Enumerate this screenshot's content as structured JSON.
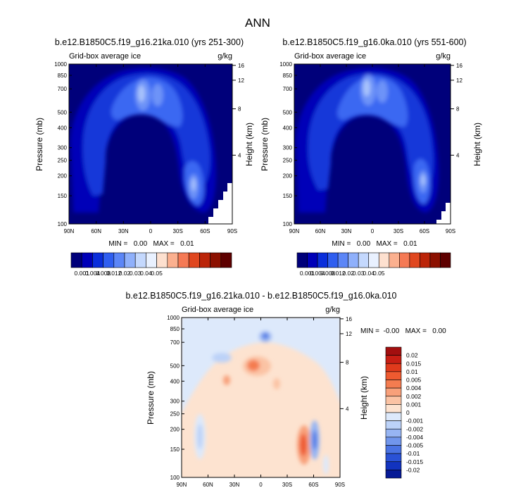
{
  "title": "ANN",
  "chart_data": [
    {
      "type": "heatmap",
      "title": "b.e12.B1850C5.f19_g16.21ka.010 (yrs 251-300)",
      "left_subtitle": "Grid-box average ice",
      "right_subtitle": "g/kg",
      "xlabel": "",
      "ylabel": "Pressure (mb)",
      "ylabel_right": "Height (km)",
      "x_ticks": [
        "90N",
        "60N",
        "30N",
        "0",
        "30S",
        "60S",
        "90S"
      ],
      "y_ticks": [
        "100",
        "150",
        "200",
        "250",
        "300",
        "400",
        "500",
        "700",
        "850",
        "1000"
      ],
      "y_ticks_right": [
        "16",
        "12",
        "8",
        "4"
      ],
      "stats": "MIN =   0.00   MAX =   0.01",
      "colorbar": {
        "labels": [
          "0.001",
          "0.004",
          "0.008",
          "0.012",
          "0.02",
          "0.03",
          "0.04",
          "0.05"
        ],
        "colors": [
          "#00007a",
          "#0000b8",
          "#0a2edb",
          "#2f5ef0",
          "#5c86f7",
          "#8fb0fb",
          "#c4d8fd",
          "#e9f1ff",
          "#fde0cf",
          "#fbb08f",
          "#f57a55",
          "#e0471f",
          "#bb2408",
          "#8c1000",
          "#5e0000"
        ]
      }
    },
    {
      "type": "heatmap",
      "title": "b.e12.B1850C5.f19_g16.0ka.010 (yrs 551-600)",
      "left_subtitle": "Grid-box average ice",
      "right_subtitle": "g/kg",
      "xlabel": "",
      "ylabel": "Pressure (mb)",
      "ylabel_right": "Height (km)",
      "x_ticks": [
        "90N",
        "60N",
        "30N",
        "0",
        "30S",
        "60S",
        "90S"
      ],
      "y_ticks": [
        "100",
        "150",
        "200",
        "250",
        "300",
        "400",
        "500",
        "700",
        "850",
        "1000"
      ],
      "y_ticks_right": [
        "16",
        "12",
        "8",
        "4"
      ],
      "stats": "MIN =   0.00   MAX =   0.01",
      "colorbar": {
        "labels": [
          "0.001",
          "0.004",
          "0.008",
          "0.012",
          "0.02",
          "0.03",
          "0.04",
          "0.05"
        ],
        "colors": [
          "#00007a",
          "#0000b8",
          "#0a2edb",
          "#2f5ef0",
          "#5c86f7",
          "#8fb0fb",
          "#c4d8fd",
          "#e9f1ff",
          "#fde0cf",
          "#fbb08f",
          "#f57a55",
          "#e0471f",
          "#bb2408",
          "#8c1000",
          "#5e0000"
        ]
      }
    },
    {
      "type": "heatmap",
      "title": "b.e12.B1850C5.f19_g16.21ka.010 - b.e12.B1850C5.f19_g16.0ka.010",
      "left_subtitle": "Grid-box average ice",
      "right_subtitle": "g/kg",
      "xlabel": "",
      "ylabel": "Pressure (mb)",
      "ylabel_right": "Height (km)",
      "x_ticks": [
        "90N",
        "60N",
        "30N",
        "0",
        "30S",
        "60S",
        "90S"
      ],
      "y_ticks": [
        "100",
        "150",
        "200",
        "250",
        "300",
        "400",
        "500",
        "700",
        "850",
        "1000"
      ],
      "y_ticks_right": [
        "16",
        "12",
        "8",
        "4"
      ],
      "stats": "MIN =  -0.00   MAX =   0.00",
      "colorbar": {
        "labels": [
          "0.02",
          "0.015",
          "0.01",
          "0.005",
          "0.004",
          "0.002",
          "0.001",
          "0",
          "-0.001",
          "-0.002",
          "-0.004",
          "-0.005",
          "-0.01",
          "-0.015",
          "-0.02"
        ],
        "colors": [
          "#a30f0f",
          "#c81e14",
          "#e03a1c",
          "#ee5a30",
          "#f47c50",
          "#f8a07a",
          "#fbc3a4",
          "#fde3d0",
          "#dde9fb",
          "#bcd2f8",
          "#97b5f3",
          "#7196ec",
          "#4a73e3",
          "#2a52d6",
          "#1233bf",
          "#061a96"
        ]
      }
    }
  ]
}
